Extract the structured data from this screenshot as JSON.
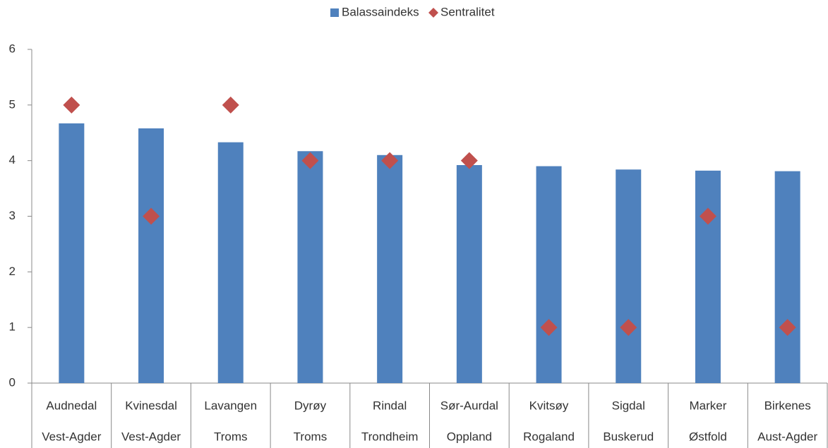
{
  "chart_data": {
    "type": "bar_scatter",
    "categories": [
      "Audnedal",
      "Kvinesdal",
      "Lavangen",
      "Dyrøy",
      "Rindal",
      "Sør-Aurdal",
      "Kvitsøy",
      "Sigdal",
      "Marker",
      "Birkenes"
    ],
    "regions": [
      "Vest-Agder",
      "Vest-Agder",
      "Troms",
      "Troms",
      "Trondheim",
      "Oppland",
      "Rogaland",
      "Buskerud",
      "Østfold",
      "Aust-Agder"
    ],
    "series": [
      {
        "name": "Balassaindeks",
        "color": "#4f81bd",
        "kind": "bar",
        "values": [
          4.67,
          4.58,
          4.33,
          4.17,
          4.1,
          3.92,
          3.9,
          3.84,
          3.82,
          3.81
        ]
      },
      {
        "name": "Sentralitet",
        "color": "#c0504d",
        "kind": "diamond",
        "values": [
          5,
          3,
          5,
          4,
          4,
          4,
          1,
          1,
          3,
          1
        ]
      }
    ],
    "ylim": [
      0,
      6
    ],
    "yticks": [
      0,
      1,
      2,
      3,
      4,
      5,
      6
    ],
    "legend": "top"
  }
}
